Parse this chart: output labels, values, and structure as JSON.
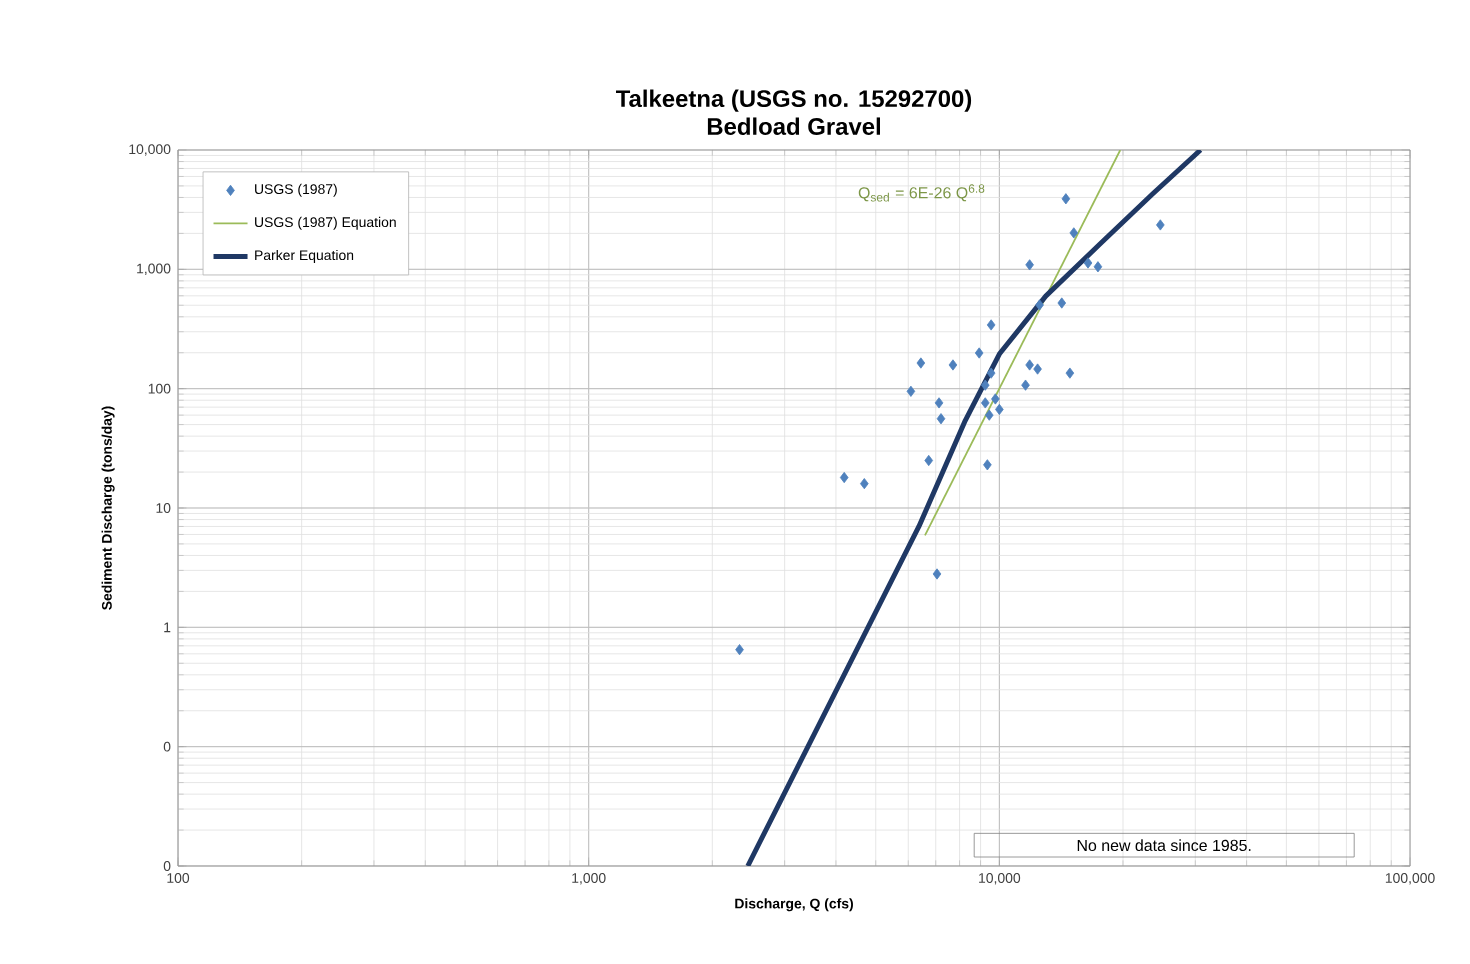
{
  "chart_data": {
    "type": "scatter",
    "title": "Talkeetna (USGS no. 15292700)",
    "subtitle": "Bedload Gravel",
    "xlabel": "Discharge, Q (cfs)",
    "ylabel": "Sediment Discharge (tons/day)",
    "log": "xy",
    "grid": true,
    "legend": "top left",
    "xlim": [
      100,
      100000
    ],
    "ylim": [
      0.01,
      10000
    ],
    "xticks": [
      100,
      {
        "value": 1000,
        "label": "1,000"
      },
      {
        "value": 10000,
        "label": "10,000"
      },
      {
        "value": 100000,
        "label": "100,000"
      }
    ],
    "yticks": [
      {
        "value": 0.01,
        "label": "0"
      },
      {
        "value": 0.1,
        "label": "0"
      },
      1,
      10,
      100,
      {
        "value": 1000,
        "label": "1,000"
      },
      {
        "value": 10000,
        "label": "10,000"
      }
    ],
    "annotations": [
      "Q$_{sed}$ = 6E-26 Q$^{6.8}$",
      "No new data since 1985."
    ],
    "series": [
      {
        "name": "USGS (1987)",
        "type": "scatter",
        "marker": "diamond",
        "color": "#4f81bd",
        "x": [
          14520,
          24660,
          15180,
          11850,
          16440,
          17380,
          14190,
          12530,
          9550,
          8930,
          6440,
          7710,
          9550,
          11850,
          12390,
          14850,
          11580,
          9240,
          6090,
          9780,
          7130,
          10000,
          7210,
          9450,
          9240,
          6730,
          9350,
          4190,
          4690,
          7050,
          2330
        ],
        "values": [
          3900,
          2355,
          2020,
          1090,
          1130,
          1050,
          522,
          503,
          342,
          199,
          164,
          158,
          135,
          158,
          146,
          135,
          107,
          107,
          95,
          82,
          76,
          67,
          56,
          60,
          76,
          25,
          23,
          18,
          16,
          2.8,
          0.65
        ]
      },
      {
        "name": "USGS (1987) Equation",
        "type": "line",
        "marker": "none",
        "color": "#9bbb59",
        "x": [
          6590,
          19700
        ],
        "values": [
          5.9,
          10000
        ]
      },
      {
        "name": "Parker Equation",
        "type": "line",
        "marker": "none",
        "color": "#1f3864",
        "x": [
          2440,
          6370,
          8260,
          10000,
          12970,
          17580,
          23600,
          30900
        ],
        "values": [
          0.01,
          7.0,
          54,
          195,
          596,
          1630,
          4280,
          10000
        ]
      }
    ]
  }
}
